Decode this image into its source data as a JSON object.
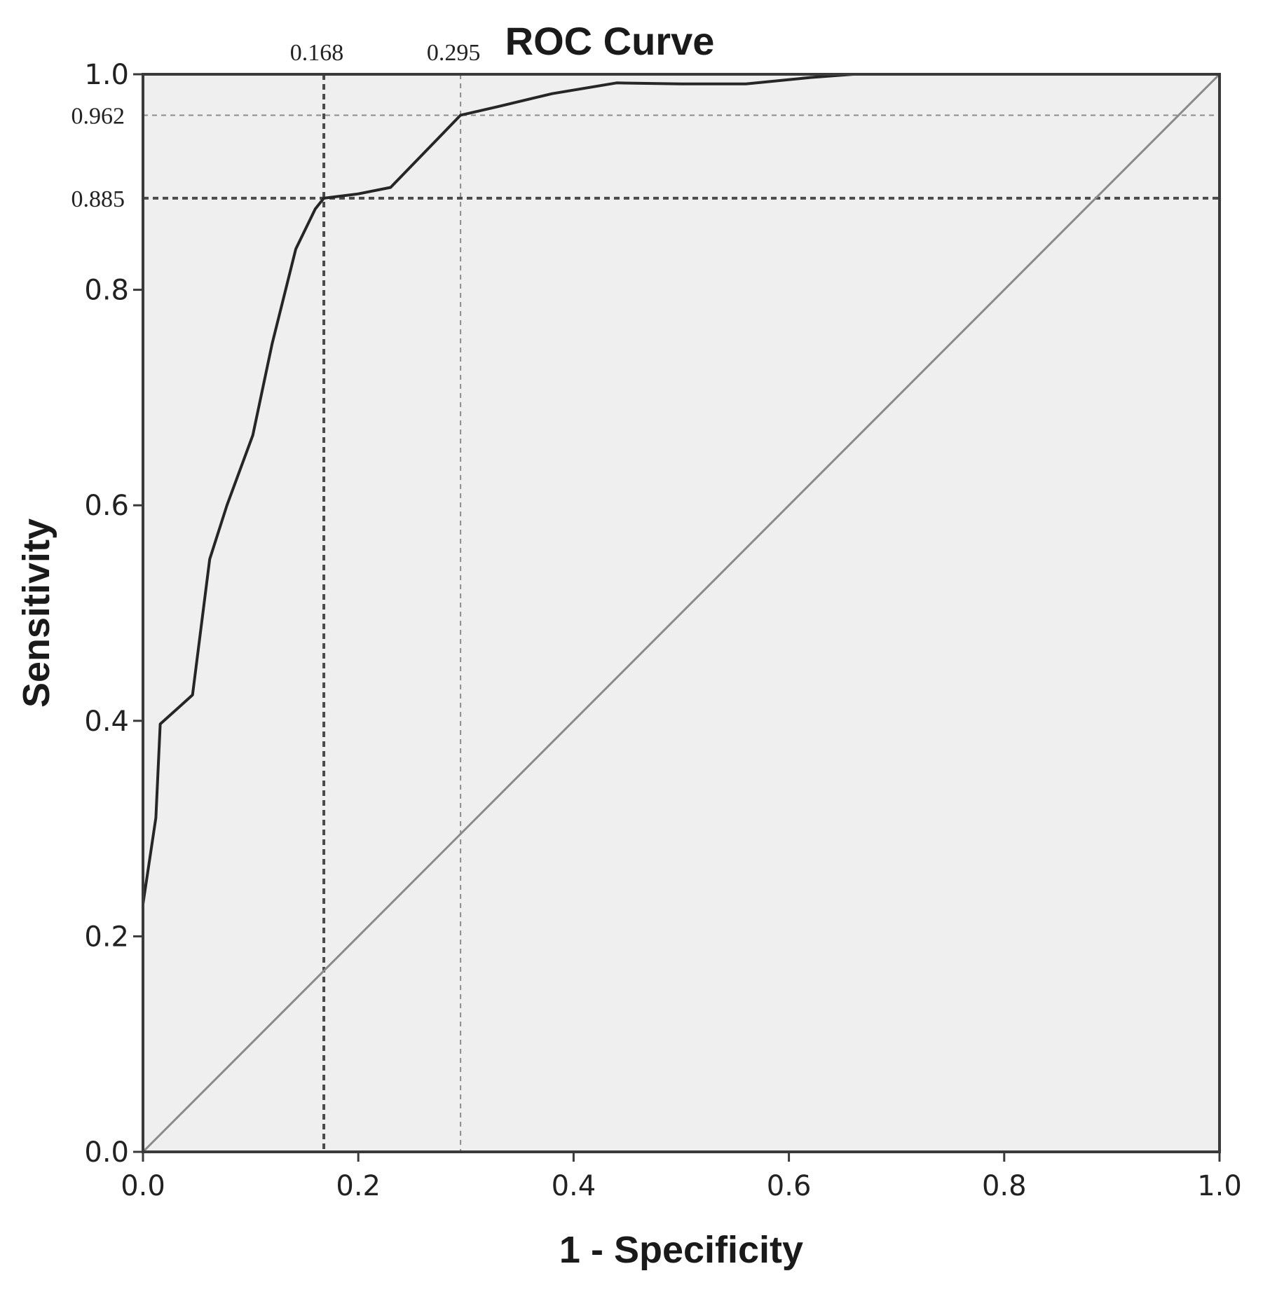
{
  "chart_data": {
    "type": "line",
    "title": "ROC Curve",
    "xlabel": "1 - Specificity",
    "ylabel": "Sensitivity",
    "xlim": [
      0,
      1
    ],
    "ylim": [
      0,
      1
    ],
    "x_ticks": [
      "0.0",
      "0.2",
      "0.4",
      "0.6",
      "0.8",
      "1.0"
    ],
    "y_ticks": [
      "0.0",
      "0.2",
      "0.4",
      "0.6",
      "0.8",
      "1.0"
    ],
    "grid": false,
    "background_color": "#efefef",
    "curve_color": "#262626",
    "diagonal_color": "#8a8a8a",
    "series": [
      {
        "x": [
          0.0,
          0.0,
          0.012,
          0.016,
          0.046,
          0.062,
          0.078,
          0.102,
          0.12,
          0.142,
          0.16,
          0.168,
          0.2,
          0.23,
          0.295,
          0.33,
          0.38,
          0.44,
          0.5,
          0.56,
          0.62,
          0.66,
          1.0
        ],
        "y": [
          0.0,
          0.23,
          0.31,
          0.397,
          0.424,
          0.55,
          0.6,
          0.665,
          0.75,
          0.838,
          0.875,
          0.885,
          0.889,
          0.895,
          0.962,
          0.97,
          0.982,
          0.992,
          0.991,
          0.991,
          0.997,
          1.0,
          1.0
        ]
      }
    ],
    "diagonal": {
      "x": [
        0,
        1
      ],
      "y": [
        0,
        1
      ]
    },
    "reference_lines": [
      {
        "axis": "x",
        "value": 0.168,
        "label": "0.168",
        "style": "heavy"
      },
      {
        "axis": "x",
        "value": 0.295,
        "label": "0.295",
        "style": "light"
      },
      {
        "axis": "y",
        "value": 0.962,
        "label": "0.962",
        "style": "light"
      },
      {
        "axis": "y",
        "value": 0.885,
        "label": "0.885",
        "style": "heavy"
      }
    ]
  }
}
